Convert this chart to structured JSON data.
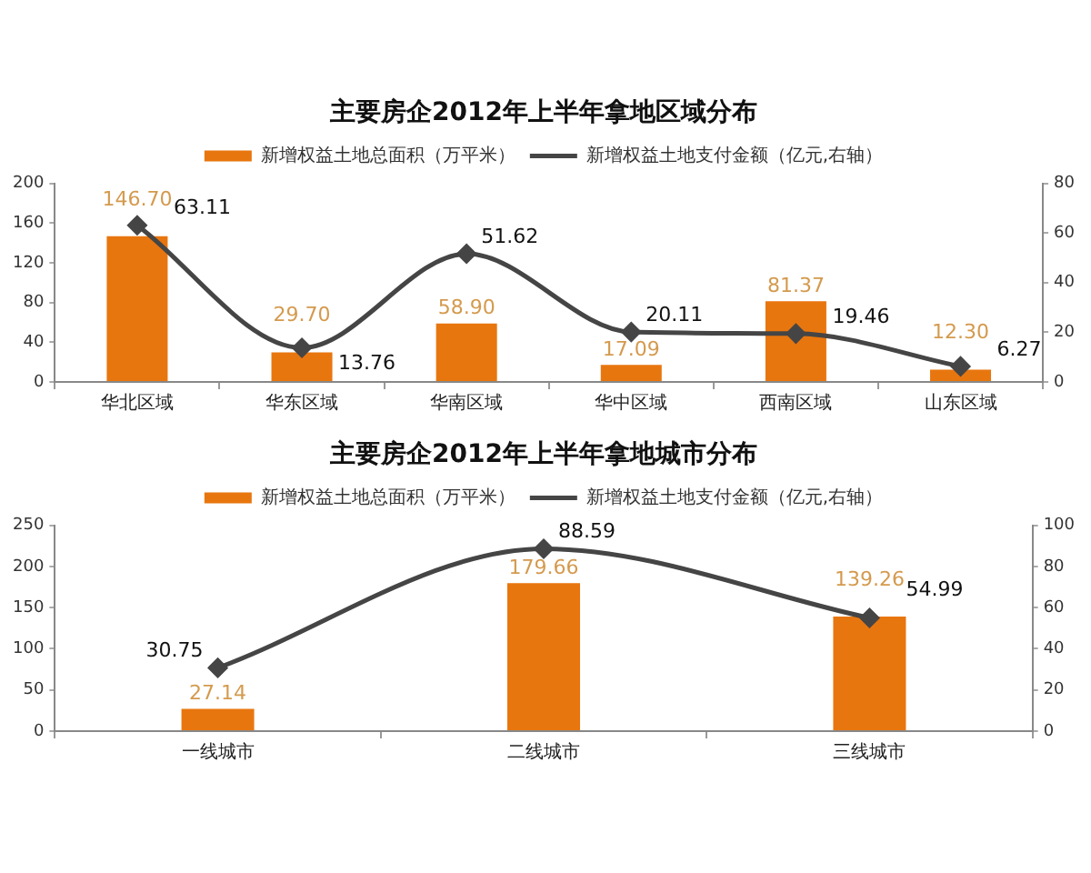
{
  "chart_data": [
    {
      "type": "bar",
      "title": "主要房企2012年上半年拿地区域分布",
      "categories": [
        "华北区域",
        "华东区域",
        "华南区域",
        "华中区域",
        "西南区域",
        "山东区域"
      ],
      "series": [
        {
          "name": "新增权益土地总面积（万平米）",
          "color": "#e8760f",
          "values": [
            146.7,
            29.7,
            58.9,
            17.09,
            81.37,
            12.3
          ],
          "value_labels": [
            "146.70",
            "29.70",
            "58.90",
            "17.09",
            "81.37",
            "12.30"
          ]
        },
        {
          "name": "新增权益土地支付金额（亿元,右轴）",
          "type": "line",
          "axis": "y2",
          "color": "#454545",
          "values": [
            63.11,
            13.76,
            51.62,
            20.11,
            19.46,
            6.27
          ],
          "value_labels": [
            "63.11",
            "13.76",
            "51.62",
            "20.11",
            "19.46",
            "6.27"
          ]
        }
      ],
      "ylim": [
        0,
        200
      ],
      "yticks": [
        0,
        40,
        80,
        120,
        160,
        200
      ],
      "y2lim": [
        0,
        80
      ],
      "y2ticks": [
        0,
        20,
        40,
        60,
        80
      ],
      "legend": "top",
      "marker": "diamond",
      "line_style": "solid",
      "grid": false
    },
    {
      "type": "bar",
      "title": "主要房企2012年上半年拿地城市分布",
      "categories": [
        "一线城市",
        "二线城市",
        "三线城市"
      ],
      "series": [
        {
          "name": "新增权益土地总面积（万平米）",
          "color": "#e8760f",
          "values": [
            27.14,
            179.66,
            139.26
          ],
          "value_labels": [
            "27.14",
            "179.66",
            "139.26"
          ]
        },
        {
          "name": "新增权益土地支付金额（亿元,右轴）",
          "type": "line",
          "axis": "y2",
          "color": "#454545",
          "values": [
            30.75,
            88.59,
            54.99
          ],
          "value_labels": [
            "30.75",
            "88.59",
            "54.99"
          ]
        }
      ],
      "ylim": [
        0,
        250
      ],
      "yticks": [
        0,
        50,
        100,
        150,
        200,
        250
      ],
      "y2lim": [
        0,
        100
      ],
      "y2ticks": [
        0,
        20,
        40,
        60,
        80,
        100
      ],
      "legend": "top",
      "marker": "diamond",
      "line_style": "solid",
      "grid": false
    }
  ]
}
